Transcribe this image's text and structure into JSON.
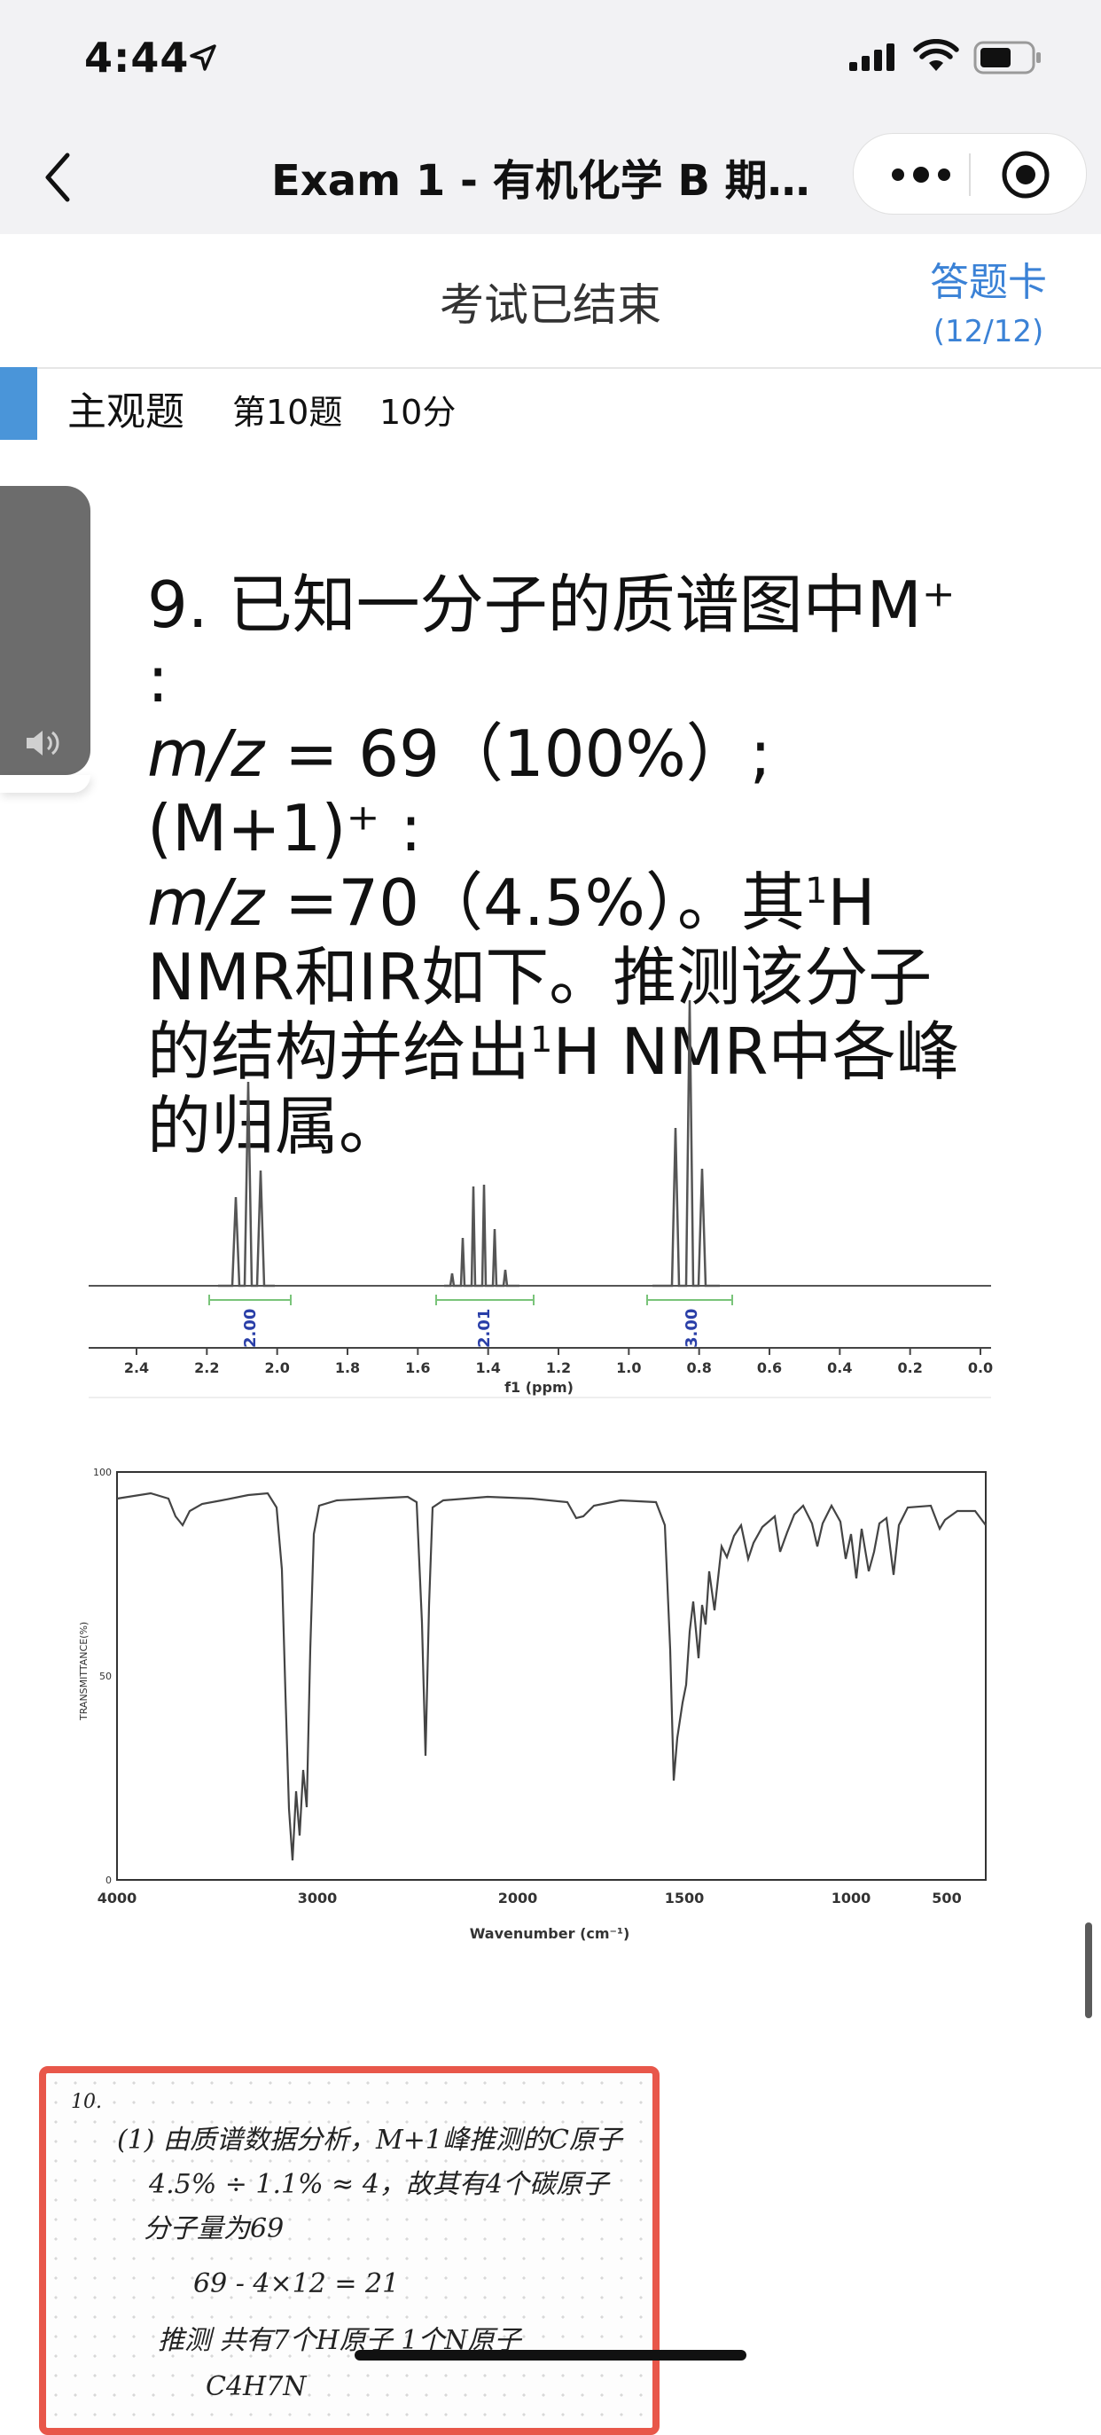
{
  "status_bar": {
    "time": "4:44"
  },
  "nav": {
    "title": "Exam 1 - 有机化学 B 期中…"
  },
  "exam": {
    "status": "考试已结束",
    "answer_card_label": "答题卡",
    "answer_card_count": "(12/12)"
  },
  "question": {
    "type": "主观题",
    "number": "第10题",
    "score": "10分",
    "text_l1": "9. 已知一分子的质谱图中M⁺ :",
    "text_l2a": "m/z",
    "text_l2b": " = 69（100%）; (M+1)⁺ :",
    "text_l3a": "m/z",
    "text_l3b": " =70（4.5%）。其",
    "text_l3c": "H",
    "text_l4": "NMR和IR如下。推测该分子",
    "text_l5a": "的结构并给出",
    "text_l5b": "H NMR中各峰",
    "text_l6": "的归属。",
    "sup_1": "1"
  },
  "nmr": {
    "xlabel": "f1 (ppm)",
    "ticks": [
      "2.4",
      "2.2",
      "2.0",
      "1.8",
      "1.6",
      "1.4",
      "1.2",
      "1.0",
      "0.8",
      "0.6",
      "0.4",
      "0.2",
      "0.0"
    ],
    "integrals": [
      "2.00",
      "2.01",
      "3.00"
    ]
  },
  "ir": {
    "xlabel": "Wavenumber (cm⁻¹)",
    "ylabel": "TRANSMITTANCE(%)",
    "xticks": [
      "4000",
      "3000",
      "2000",
      "1500",
      "1000",
      "500"
    ],
    "yticks": [
      "100",
      "50",
      "0"
    ]
  },
  "answer": {
    "lines": [
      "10.",
      "(1) 由质谱数据分析，M+1峰推测的C原子",
      "4.5% ÷ 1.1% ≈ 4，故其有4个碳原子",
      "分子量为69",
      "69 - 4×12 = 21",
      "推测 共有7个H原子  1个N原子",
      "C4H7N"
    ]
  }
}
